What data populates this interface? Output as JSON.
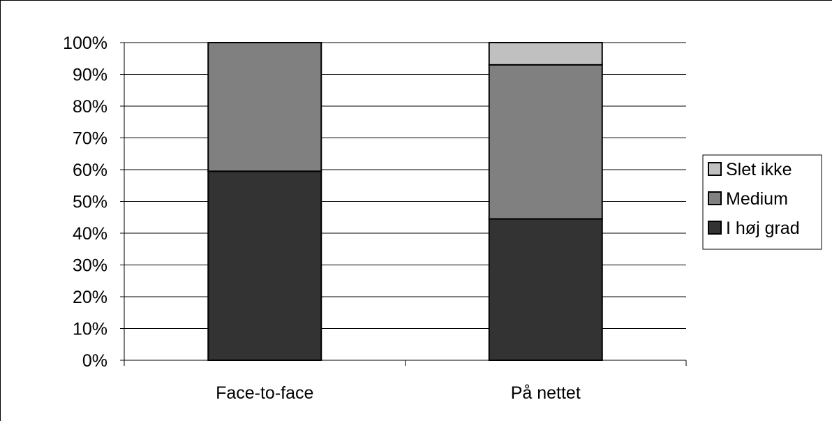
{
  "chart_data": {
    "type": "bar",
    "stacked": true,
    "categories": [
      "Face-to-face",
      "På nettet"
    ],
    "series": [
      {
        "name": "I høj grad",
        "values": [
          59.5,
          44.5
        ],
        "color": "#333333"
      },
      {
        "name": "Medium",
        "values": [
          40.5,
          48.5
        ],
        "color": "#808080"
      },
      {
        "name": "Slet ikke",
        "values": [
          0,
          7
        ],
        "color": "#c0c0c0"
      }
    ],
    "ylim": [
      0,
      100
    ],
    "yticks": [
      "0%",
      "10%",
      "20%",
      "30%",
      "40%",
      "50%",
      "60%",
      "70%",
      "80%",
      "90%",
      "100%"
    ],
    "grid": true,
    "legend_position": "right",
    "legend_order": [
      "Slet ikke",
      "Medium",
      "I høj grad"
    ],
    "title": "",
    "xlabel": "",
    "ylabel": ""
  }
}
